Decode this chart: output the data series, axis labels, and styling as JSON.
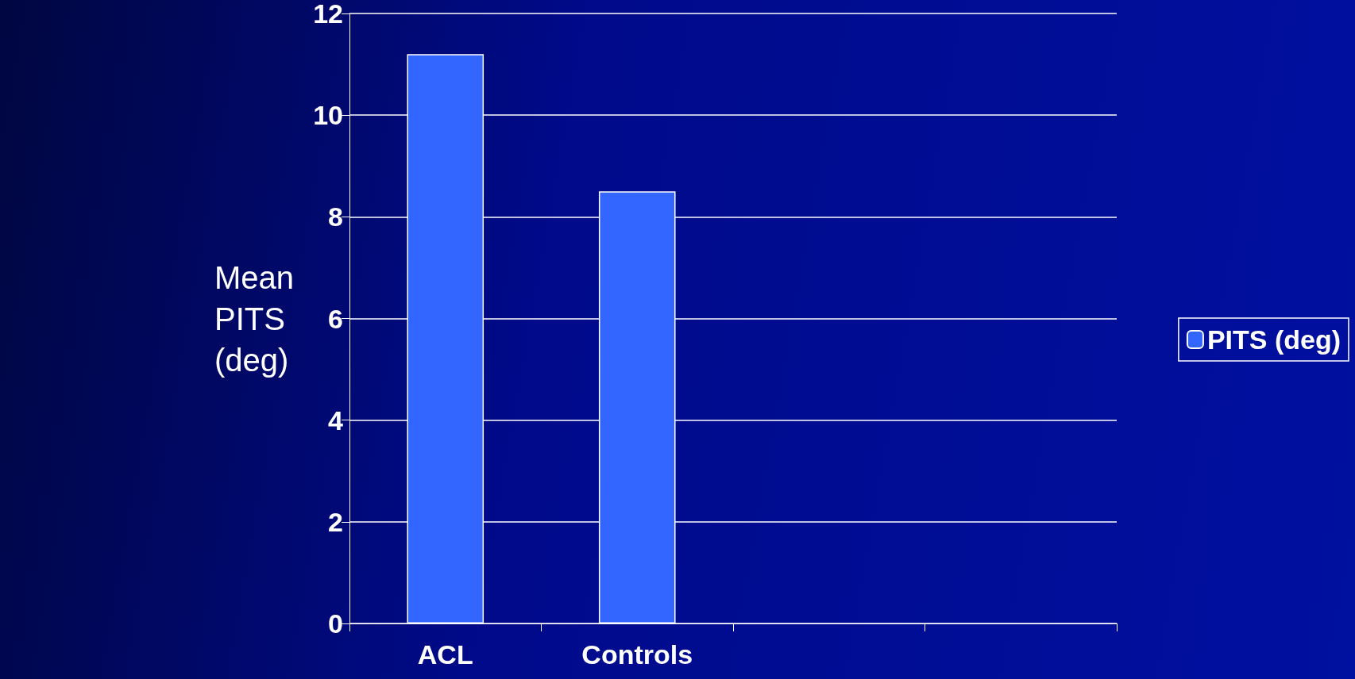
{
  "chart_data": {
    "type": "bar",
    "ylabel": "Mean\nPITS\n(deg)",
    "categories": [
      "ACL",
      "Controls",
      null,
      null
    ],
    "series": [
      {
        "name": "PITS (deg)",
        "color": "#3366ff",
        "values": [
          11.2,
          8.5,
          null,
          null
        ]
      }
    ],
    "ylim": [
      0,
      12
    ],
    "yticks": [
      0,
      2,
      4,
      6,
      8,
      10,
      12
    ],
    "grid": "y",
    "legend": "right"
  }
}
